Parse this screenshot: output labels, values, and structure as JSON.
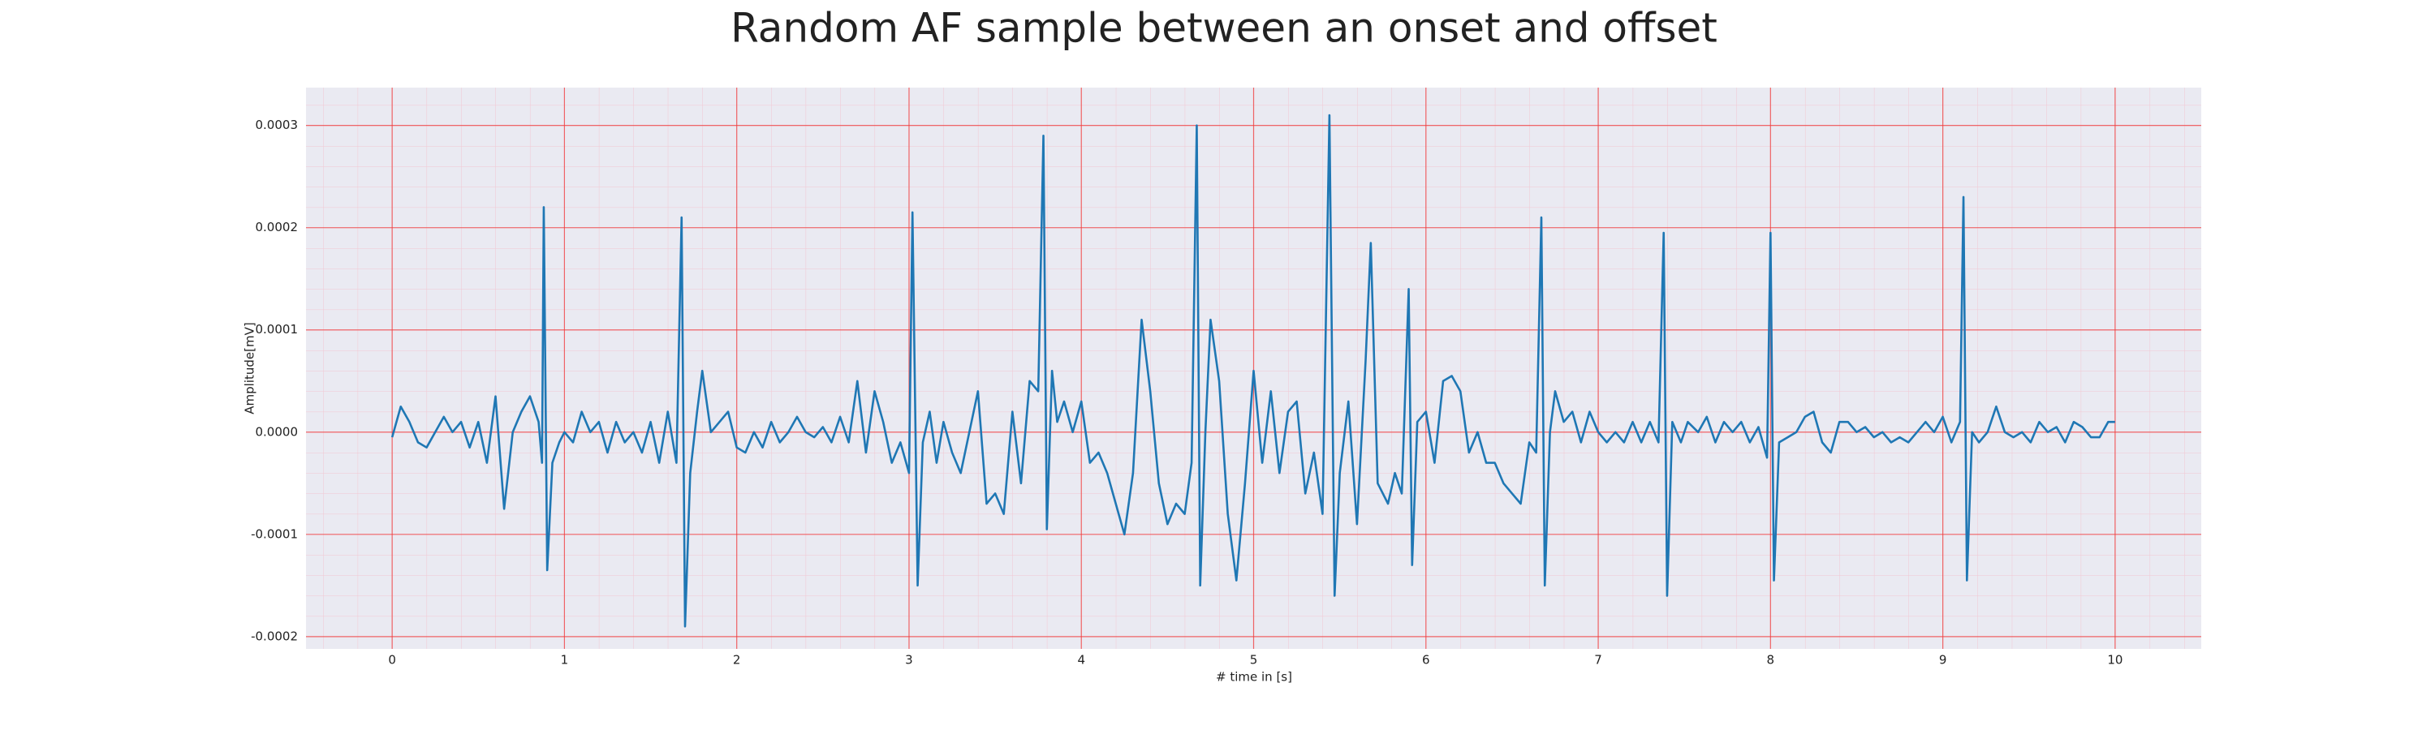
{
  "chart_data": {
    "type": "line",
    "title": "Random AF sample between an onset and offset",
    "x_label": "# time in [s]",
    "y_label": "Amplitude[mV]",
    "color": "#1f77b4",
    "grid": true,
    "x": [
      0,
      0.05,
      0.1,
      0.15,
      0.2,
      0.25,
      0.3,
      0.35,
      0.4,
      0.45,
      0.5,
      0.55,
      0.6,
      0.65,
      0.7,
      0.75,
      0.8,
      0.85,
      0.87,
      0.88,
      0.9,
      0.93,
      0.97,
      1,
      1.05,
      1.1,
      1.15,
      1.2,
      1.25,
      1.3,
      1.35,
      1.4,
      1.45,
      1.5,
      1.55,
      1.6,
      1.65,
      1.68,
      1.7,
      1.73,
      1.77,
      1.8,
      1.85,
      1.9,
      1.95,
      2,
      2.05,
      2.1,
      2.15,
      2.2,
      2.25,
      2.3,
      2.35,
      2.4,
      2.45,
      2.5,
      2.55,
      2.6,
      2.65,
      2.7,
      2.75,
      2.8,
      2.85,
      2.9,
      2.95,
      3,
      3.02,
      3.05,
      3.08,
      3.12,
      3.16,
      3.2,
      3.25,
      3.3,
      3.35,
      3.4,
      3.45,
      3.5,
      3.55,
      3.6,
      3.65,
      3.7,
      3.75,
      3.78,
      3.8,
      3.83,
      3.86,
      3.9,
      3.95,
      4,
      4.05,
      4.1,
      4.15,
      4.2,
      4.25,
      4.3,
      4.35,
      4.4,
      4.45,
      4.5,
      4.55,
      4.6,
      4.64,
      4.67,
      4.69,
      4.72,
      4.75,
      4.8,
      4.85,
      4.9,
      4.95,
      5,
      5.05,
      5.1,
      5.15,
      5.2,
      5.25,
      5.3,
      5.35,
      5.4,
      5.44,
      5.47,
      5.5,
      5.55,
      5.6,
      5.65,
      5.68,
      5.72,
      5.78,
      5.82,
      5.86,
      5.9,
      5.92,
      5.95,
      6,
      6.05,
      6.1,
      6.15,
      6.2,
      6.25,
      6.3,
      6.35,
      6.4,
      6.45,
      6.5,
      6.55,
      6.6,
      6.64,
      6.67,
      6.69,
      6.72,
      6.75,
      6.8,
      6.85,
      6.9,
      6.95,
      7,
      7.05,
      7.1,
      7.15,
      7.2,
      7.25,
      7.3,
      7.35,
      7.38,
      7.4,
      7.43,
      7.48,
      7.52,
      7.58,
      7.63,
      7.68,
      7.73,
      7.78,
      7.83,
      7.88,
      7.93,
      7.98,
      8,
      8.02,
      8.05,
      8.1,
      8.15,
      8.2,
      8.25,
      8.3,
      8.35,
      8.4,
      8.45,
      8.5,
      8.55,
      8.6,
      8.65,
      8.7,
      8.75,
      8.8,
      8.85,
      8.9,
      8.95,
      9,
      9.05,
      9.1,
      9.12,
      9.14,
      9.17,
      9.21,
      9.26,
      9.31,
      9.36,
      9.41,
      9.46,
      9.51,
      9.56,
      9.61,
      9.66,
      9.71,
      9.76,
      9.81,
      9.86,
      9.91,
      9.96,
      10
    ],
    "values": [
      -5e-06,
      2.5e-05,
      1e-05,
      -1e-05,
      -1.5e-05,
      0,
      1.5e-05,
      0,
      1e-05,
      -1.5e-05,
      1e-05,
      -3e-05,
      3.5e-05,
      -7.5e-05,
      0,
      2e-05,
      3.5e-05,
      1e-05,
      -3e-05,
      0.00022,
      -0.000135,
      -3e-05,
      -1e-05,
      0,
      -1e-05,
      2e-05,
      0,
      1e-05,
      -2e-05,
      1e-05,
      -1e-05,
      0,
      -2e-05,
      1e-05,
      -3e-05,
      2e-05,
      -3e-05,
      0.00021,
      -0.00019,
      -4e-05,
      2e-05,
      6e-05,
      0,
      1e-05,
      2e-05,
      -1.5e-05,
      -2e-05,
      0,
      -1.5e-05,
      1e-05,
      -1e-05,
      0,
      1.5e-05,
      0,
      -5e-06,
      5e-06,
      -1e-05,
      1.5e-05,
      -1e-05,
      5e-05,
      -2e-05,
      4e-05,
      1e-05,
      -3e-05,
      -1e-05,
      -4e-05,
      0.000215,
      -0.00015,
      -1e-05,
      2e-05,
      -3e-05,
      1e-05,
      -2e-05,
      -4e-05,
      0,
      4e-05,
      -7e-05,
      -6e-05,
      -8e-05,
      2e-05,
      -5e-05,
      5e-05,
      4e-05,
      0.00029,
      -9.5e-05,
      6e-05,
      1e-05,
      3e-05,
      0,
      3e-05,
      -3e-05,
      -2e-05,
      -4e-05,
      -7e-05,
      -0.0001,
      -4e-05,
      0.00011,
      4e-05,
      -5e-05,
      -9e-05,
      -7e-05,
      -8e-05,
      -3e-05,
      0.0003,
      -0.00015,
      0,
      0.00011,
      5e-05,
      -8e-05,
      -0.000145,
      -5e-05,
      6e-05,
      -3e-05,
      4e-05,
      -4e-05,
      2e-05,
      3e-05,
      -6e-05,
      -2e-05,
      -8e-05,
      0.00031,
      -0.00016,
      -4e-05,
      3e-05,
      -9e-05,
      7e-05,
      0.000185,
      -5e-05,
      -7e-05,
      -4e-05,
      -6e-05,
      0.00014,
      -0.00013,
      1e-05,
      2e-05,
      -3e-05,
      5e-05,
      5.5e-05,
      4e-05,
      -2e-05,
      0,
      -3e-05,
      -3e-05,
      -5e-05,
      -6e-05,
      -7e-05,
      -1e-05,
      -2e-05,
      0.00021,
      -0.00015,
      0,
      4e-05,
      1e-05,
      2e-05,
      -1e-05,
      2e-05,
      0,
      -1e-05,
      0,
      -1e-05,
      1e-05,
      -1e-05,
      1e-05,
      -1e-05,
      0.000195,
      -0.00016,
      1e-05,
      -1e-05,
      1e-05,
      0,
      1.5e-05,
      -1e-05,
      1e-05,
      0,
      1e-05,
      -1e-05,
      5e-06,
      -2.5e-05,
      0.000195,
      -0.000145,
      -1e-05,
      -5e-06,
      0,
      1.5e-05,
      2e-05,
      -1e-05,
      -2e-05,
      1e-05,
      1e-05,
      0,
      5e-06,
      -5e-06,
      0,
      -1e-05,
      -5e-06,
      -1e-05,
      0,
      1e-05,
      0,
      1.5e-05,
      -1e-05,
      1e-05,
      0.00023,
      -0.000145,
      0,
      -1e-05,
      0,
      2.5e-05,
      0,
      -5e-06,
      0,
      -1e-05,
      1e-05,
      0,
      5e-06,
      -1e-05,
      1e-05,
      5e-06,
      -5e-06,
      -5e-06,
      1e-05,
      1e-05
    ],
    "xlim": [
      -0.5,
      10.5
    ],
    "xticks": [
      0,
      1,
      2,
      3,
      4,
      5,
      6,
      7,
      8,
      9,
      10
    ],
    "ylim": [
      -0.000212,
      0.000337
    ],
    "yticks": [
      {
        "value": -0.0002,
        "label": "-0.0002"
      },
      {
        "value": -0.0001,
        "label": "-0.0001"
      },
      {
        "value": 0,
        "label": "0.0000"
      },
      {
        "value": 0.0001,
        "label": "0.0001"
      },
      {
        "value": 0.0002,
        "label": "0.0002"
      },
      {
        "value": 0.0003,
        "label": "0.0003"
      }
    ]
  }
}
